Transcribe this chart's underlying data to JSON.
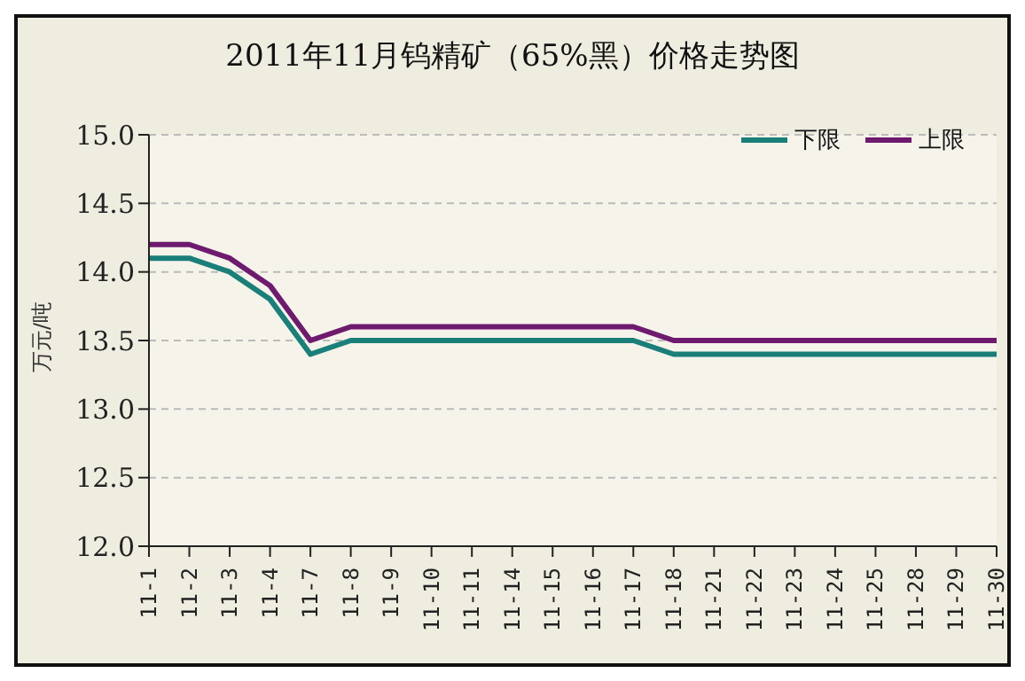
{
  "chart_data": {
    "type": "line",
    "title": "2011年11月钨精矿（65%黑）价格走势图",
    "ylabel": "万元/吨",
    "categories": [
      "11-1",
      "11-2",
      "11-3",
      "11-4",
      "11-7",
      "11-8",
      "11-9",
      "11-10",
      "11-11",
      "11-14",
      "11-15",
      "11-16",
      "11-17",
      "11-18",
      "11-21",
      "11-22",
      "11-23",
      "11-24",
      "11-25",
      "11-28",
      "11-29",
      "11-30"
    ],
    "series": [
      {
        "name": "下限",
        "color": "#1a7f78",
        "values": [
          14.1,
          14.1,
          14.0,
          13.8,
          13.4,
          13.5,
          13.5,
          13.5,
          13.5,
          13.5,
          13.5,
          13.5,
          13.5,
          13.4,
          13.4,
          13.4,
          13.4,
          13.4,
          13.4,
          13.4,
          13.4,
          13.4
        ]
      },
      {
        "name": "上限",
        "color": "#6e1a6e",
        "values": [
          14.2,
          14.2,
          14.1,
          13.9,
          13.5,
          13.6,
          13.6,
          13.6,
          13.6,
          13.6,
          13.6,
          13.6,
          13.6,
          13.5,
          13.5,
          13.5,
          13.5,
          13.5,
          13.5,
          13.5,
          13.5,
          13.5
        ]
      }
    ],
    "ylim": [
      12.0,
      15.0
    ],
    "yticks": [
      {
        "value": 12,
        "label": "12.0"
      },
      12.5,
      {
        "value": 13,
        "label": "13.0"
      },
      13.5,
      {
        "value": 14,
        "label": "14.0"
      },
      14.5,
      {
        "value": 15,
        "label": "15.0"
      }
    ],
    "grid": "y",
    "legend": "top right",
    "marker": "none",
    "line_style": "solid"
  }
}
